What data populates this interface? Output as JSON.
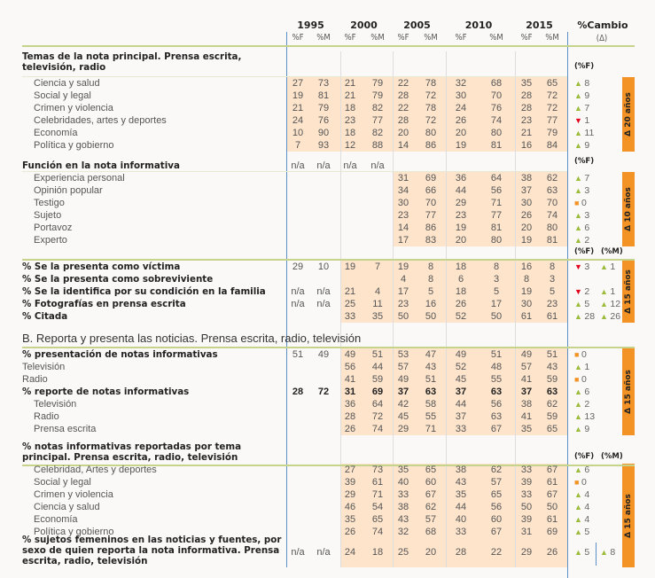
{
  "header": {
    "years": [
      "1995",
      "2000",
      "2005",
      "2010",
      "2015"
    ],
    "sub_f": "%F",
    "sub_m": "%M",
    "change_title": "%Cambio",
    "change_sub": "(Δ)"
  },
  "colors": {
    "shade": "#fde4cb",
    "band": "#f39325",
    "up": "#9bbb3a",
    "down": "#e2001a",
    "neutral": "#f39325",
    "rule": "#c5d48a",
    "axis": "#5b8fc7"
  },
  "sections": [
    {
      "title": "Temas de la nota principal. Prensa escrita, televisión, radio",
      "change_header": [
        "(%F)"
      ],
      "band": "Δ 20 años",
      "rows": [
        {
          "label": "Ciencia y salud",
          "indent": true,
          "values": [
            "27",
            "73",
            "21",
            "79",
            "22",
            "78",
            "32",
            "68",
            "35",
            "65"
          ],
          "cf": [
            "up",
            "8"
          ]
        },
        {
          "label": "Social y legal",
          "indent": true,
          "values": [
            "19",
            "81",
            "21",
            "79",
            "28",
            "72",
            "30",
            "70",
            "28",
            "72"
          ],
          "cf": [
            "up",
            "9"
          ]
        },
        {
          "label": "Crimen y violencia",
          "indent": true,
          "values": [
            "21",
            "79",
            "18",
            "82",
            "22",
            "78",
            "24",
            "76",
            "28",
            "72"
          ],
          "cf": [
            "up",
            "7"
          ]
        },
        {
          "label": "Celebridades, artes y deportes",
          "indent": true,
          "values": [
            "24",
            "76",
            "23",
            "77",
            "28",
            "72",
            "26",
            "74",
            "23",
            "77"
          ],
          "cf": [
            "down",
            "1"
          ]
        },
        {
          "label": "Economía",
          "indent": true,
          "values": [
            "10",
            "90",
            "18",
            "82",
            "20",
            "80",
            "20",
            "80",
            "21",
            "79"
          ],
          "cf": [
            "up",
            "11"
          ]
        },
        {
          "label": "Política y gobierno",
          "indent": true,
          "values": [
            "7",
            "93",
            "12",
            "88",
            "14",
            "86",
            "19",
            "81",
            "16",
            "84"
          ],
          "cf": [
            "up",
            "9"
          ]
        }
      ]
    },
    {
      "title": "Función en la nota informativa",
      "title_values": [
        "n/a",
        "n/a",
        "n/a",
        "n/a"
      ],
      "change_header": [
        "(%F)"
      ],
      "band": "Δ 10 años",
      "rows": [
        {
          "label": "Experiencia personal",
          "indent": true,
          "values": [
            "",
            "",
            "",
            "",
            "31",
            "69",
            "36",
            "64",
            "38",
            "62"
          ],
          "cf": [
            "up",
            "7"
          ]
        },
        {
          "label": "Opinión popular",
          "indent": true,
          "values": [
            "",
            "",
            "",
            "",
            "34",
            "66",
            "44",
            "56",
            "37",
            "63"
          ],
          "cf": [
            "up",
            "3"
          ]
        },
        {
          "label": "Testigo",
          "indent": true,
          "values": [
            "",
            "",
            "",
            "",
            "30",
            "70",
            "29",
            "71",
            "30",
            "70"
          ],
          "cf": [
            "eq",
            "0"
          ]
        },
        {
          "label": "Sujeto",
          "indent": true,
          "values": [
            "",
            "",
            "",
            "",
            "23",
            "77",
            "23",
            "77",
            "26",
            "74"
          ],
          "cf": [
            "up",
            "3"
          ]
        },
        {
          "label": "Portavoz",
          "indent": true,
          "values": [
            "",
            "",
            "",
            "",
            "14",
            "86",
            "19",
            "81",
            "20",
            "80"
          ],
          "cf": [
            "up",
            "6"
          ]
        },
        {
          "label": "Experto",
          "indent": true,
          "values": [
            "",
            "",
            "",
            "",
            "17",
            "83",
            "20",
            "80",
            "19",
            "81"
          ],
          "cf": [
            "up",
            "2"
          ]
        }
      ]
    },
    {
      "change_header": [
        "(%F)",
        "(%M)"
      ],
      "band": "Δ 15 años",
      "rows": [
        {
          "label": "% Se la presenta como víctima",
          "bold": true,
          "values": [
            "29",
            "10",
            "19",
            "7",
            "19",
            "8",
            "18",
            "8",
            "16",
            "8"
          ],
          "cf": [
            "down",
            "3"
          ],
          "cm": [
            "up",
            "1"
          ]
        },
        {
          "label": "% Se la presenta como sobreviviente",
          "bold": true,
          "values": [
            "",
            "",
            "",
            "",
            "4",
            "8",
            "6",
            "3",
            "8",
            "3"
          ]
        },
        {
          "label": "% Se la identifica por su condición en la familia",
          "bold": true,
          "values": [
            "n/a",
            "n/a",
            "21",
            "4",
            "17",
            "5",
            "18",
            "5",
            "19",
            "5"
          ],
          "cf": [
            "down",
            "2"
          ],
          "cm": [
            "up",
            "1"
          ]
        },
        {
          "label": "% Fotografías en prensa escrita",
          "bold": true,
          "values": [
            "n/a",
            "n/a",
            "25",
            "11",
            "23",
            "16",
            "26",
            "17",
            "30",
            "23"
          ],
          "cf": [
            "up",
            "5"
          ],
          "cm": [
            "up",
            "12"
          ]
        },
        {
          "label": "% Citada",
          "bold": true,
          "values": [
            "",
            "",
            "33",
            "35",
            "50",
            "50",
            "52",
            "50",
            "61",
            "61"
          ],
          "cf": [
            "up",
            "28"
          ],
          "cm": [
            "up",
            "26"
          ]
        }
      ]
    },
    {
      "heading": "B. Reporta y presenta las noticias. Prensa escrita, radio, televisión",
      "band": "Δ 15 años",
      "rows": [
        {
          "label": "% presentación de notas informativas",
          "bold": true,
          "values": [
            "51",
            "49",
            "49",
            "51",
            "53",
            "47",
            "49",
            "51",
            "49",
            "51"
          ],
          "cf": [
            "eq",
            "0"
          ]
        },
        {
          "label": "Televisión",
          "values": [
            "",
            "",
            "56",
            "44",
            "57",
            "43",
            "52",
            "48",
            "57",
            "43"
          ],
          "cf": [
            "up",
            "1"
          ]
        },
        {
          "label": "Radio",
          "values": [
            "",
            "",
            "41",
            "59",
            "49",
            "51",
            "45",
            "55",
            "41",
            "59"
          ],
          "cf": [
            "eq",
            "0"
          ]
        },
        {
          "label": "% reporte de notas informativas",
          "bold": true,
          "boldvals": true,
          "values": [
            "28",
            "72",
            "31",
            "69",
            "37",
            "63",
            "37",
            "63",
            "37",
            "63"
          ],
          "cf": [
            "up",
            "6"
          ]
        },
        {
          "label": "Televisión",
          "indent": true,
          "values": [
            "",
            "",
            "36",
            "64",
            "42",
            "58",
            "44",
            "56",
            "38",
            "62"
          ],
          "cf": [
            "up",
            "2"
          ]
        },
        {
          "label": "Radio",
          "indent": true,
          "values": [
            "",
            "",
            "28",
            "72",
            "45",
            "55",
            "37",
            "63",
            "41",
            "59"
          ],
          "cf": [
            "up",
            "13"
          ]
        },
        {
          "label": "Prensa escrita",
          "indent": true,
          "values": [
            "",
            "",
            "26",
            "74",
            "29",
            "71",
            "33",
            "67",
            "35",
            "65"
          ],
          "cf": [
            "up",
            "9"
          ]
        }
      ]
    },
    {
      "title": "% notas informativas reportadas por tema principal. Prensa escrita, radio, televisión",
      "change_header": [
        "(%F)",
        "(%M)"
      ],
      "band": "Δ 15 años",
      "rows": [
        {
          "label": "Celebridad, Artes y deportes",
          "indent": true,
          "values": [
            "",
            "",
            "27",
            "73",
            "35",
            "65",
            "38",
            "62",
            "33",
            "67"
          ],
          "cf": [
            "up",
            "6"
          ]
        },
        {
          "label": "Social y legal",
          "indent": true,
          "values": [
            "",
            "",
            "39",
            "61",
            "40",
            "60",
            "43",
            "57",
            "39",
            "61"
          ],
          "cf": [
            "eq",
            "0"
          ]
        },
        {
          "label": "Crimen y violencia",
          "indent": true,
          "values": [
            "",
            "",
            "29",
            "71",
            "33",
            "67",
            "35",
            "65",
            "33",
            "67"
          ],
          "cf": [
            "up",
            "4"
          ]
        },
        {
          "label": "Ciencia y salud",
          "indent": true,
          "values": [
            "",
            "",
            "46",
            "54",
            "38",
            "62",
            "44",
            "56",
            "50",
            "50"
          ],
          "cf": [
            "up",
            "4"
          ]
        },
        {
          "label": "Economía",
          "indent": true,
          "values": [
            "",
            "",
            "35",
            "65",
            "43",
            "57",
            "40",
            "60",
            "39",
            "61"
          ],
          "cf": [
            "up",
            "4"
          ]
        },
        {
          "label": "Política y gobierno",
          "indent": true,
          "values": [
            "",
            "",
            "26",
            "74",
            "32",
            "68",
            "33",
            "67",
            "31",
            "69"
          ],
          "cf": [
            "up",
            "5"
          ]
        },
        {
          "label": "% sujetos femeninos en las noticias y fuentes, por sexo de quien reporta la nota informativa. Prensa escrita, radio, televisión",
          "bold": true,
          "tall": true,
          "values": [
            "n/a",
            "n/a",
            "24",
            "18",
            "25",
            "20",
            "28",
            "22",
            "29",
            "26"
          ],
          "cf": [
            "up",
            "5"
          ],
          "cm": [
            "up",
            "8"
          ]
        }
      ]
    }
  ]
}
